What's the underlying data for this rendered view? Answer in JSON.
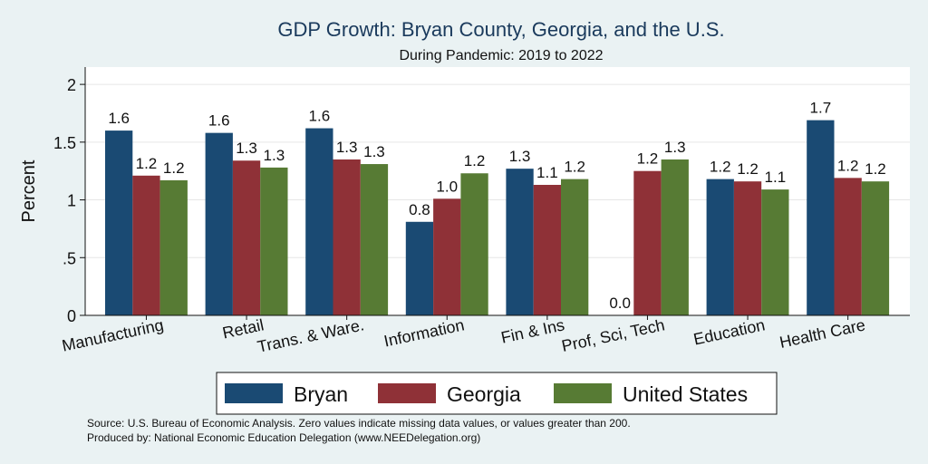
{
  "chart_data": {
    "type": "bar",
    "title": "GDP Growth: Bryan County, Georgia, and the U.S.",
    "subtitle": "During Pandemic: 2019 to 2022",
    "ylabel": "Percent",
    "xlabel": "",
    "ylim": [
      0,
      2.15
    ],
    "yticks": [
      {
        "value": 0,
        "label": "0"
      },
      {
        "value": 0.5,
        "label": ".5"
      },
      {
        "value": 1,
        "label": "1"
      },
      {
        "value": 1.5,
        "label": "1.5"
      },
      {
        "value": 2,
        "label": "2"
      }
    ],
    "grid": true,
    "legend_position": "bottom",
    "categories": [
      "Manufacturing",
      "Retail",
      "Trans. & Ware.",
      "Information",
      "Fin & Ins",
      "Prof, Sci, Tech",
      "Education",
      "Health Care"
    ],
    "series": [
      {
        "name": "Bryan",
        "color": "#1a4a73",
        "values": [
          1.6,
          1.58,
          1.62,
          0.81,
          1.27,
          0.0,
          1.18,
          1.69
        ],
        "labels": [
          "1.6",
          "1.6",
          "1.6",
          "0.8",
          "1.3",
          "0.0",
          "1.2",
          "1.7"
        ]
      },
      {
        "name": "Georgia",
        "color": "#8f3137",
        "values": [
          1.21,
          1.34,
          1.35,
          1.01,
          1.13,
          1.25,
          1.16,
          1.19
        ],
        "labels": [
          "1.2",
          "1.3",
          "1.3",
          "1.0",
          "1.1",
          "1.2",
          "1.2",
          "1.2"
        ]
      },
      {
        "name": "United States",
        "color": "#577b34",
        "values": [
          1.17,
          1.28,
          1.31,
          1.23,
          1.18,
          1.35,
          1.09,
          1.16
        ],
        "labels": [
          "1.2",
          "1.3",
          "1.3",
          "1.2",
          "1.2",
          "1.3",
          "1.1",
          "1.2"
        ]
      }
    ],
    "notes": [
      "Source: U.S. Bureau of Economic Analysis. Zero values indicate missing data values, or values greater than 200.",
      "Produced by: National Economic Education Delegation (www.NEEDelegation.org)"
    ]
  }
}
